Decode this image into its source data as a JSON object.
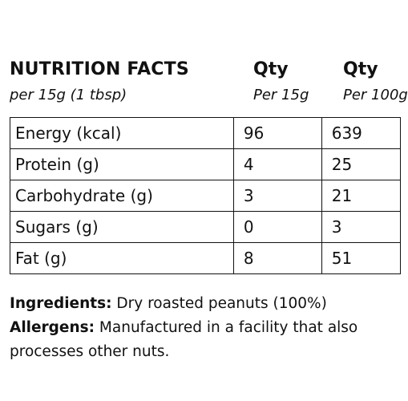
{
  "header": {
    "title": "NUTRITION FACTS",
    "subtitle": "per 15g (1 tbsp)",
    "columns": [
      {
        "label": "Qty",
        "sub": "Per 15g"
      },
      {
        "label": "Qty",
        "sub": "Per 100g"
      }
    ]
  },
  "rows": [
    {
      "name": "Energy (kcal)",
      "per15": "96",
      "per100": "639"
    },
    {
      "name": "Protein (g)",
      "per15": "4",
      "per100": "25"
    },
    {
      "name": "Carbohydrate (g)",
      "per15": "3",
      "per100": "21"
    },
    {
      "name": "Sugars (g)",
      "per15": "0",
      "per100": "3"
    },
    {
      "name": "Fat (g)",
      "per15": "8",
      "per100": "51"
    }
  ],
  "ingredients": {
    "label": "Ingredients:",
    "text": " Dry roasted peanuts (100%)"
  },
  "allergens": {
    "label": "Allergens:",
    "text": " Manufactured in a facility that also processes other nuts."
  }
}
